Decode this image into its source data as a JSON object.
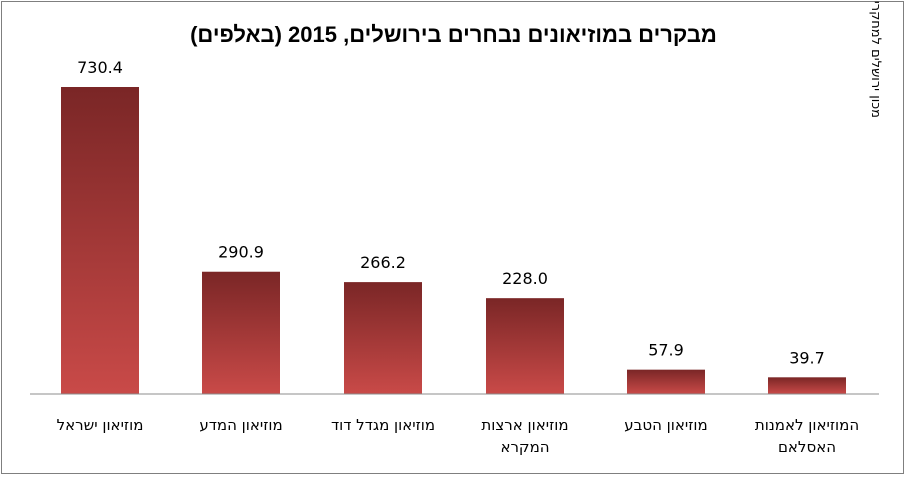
{
  "chart_data": {
    "type": "bar",
    "title": "מבקרים במוזיאונים נבחרים בירושלים, 2015 (באלפים)",
    "source": "מכון ירושלים למחקרי מדיניות",
    "categories": [
      [
        "מוזיאון ישראל"
      ],
      [
        "מוזיאון המדע"
      ],
      [
        "מוזיאון מגדל דוד"
      ],
      [
        "מוזיאון ארצות",
        "המקרא"
      ],
      [
        "מוזיאון הטבע"
      ],
      [
        "המוזיאון לאמנות",
        "האסלאם"
      ]
    ],
    "values": [
      730.4,
      290.9,
      266.2,
      228.0,
      57.9,
      39.7
    ],
    "value_labels": [
      "730.4",
      "290.9",
      "266.2",
      "228.0",
      "57.9",
      "39.7"
    ],
    "ylim": [
      0,
      800
    ],
    "grid": false,
    "colors": {
      "bar_top": "#7a2626",
      "bar_bottom": "#c94a48",
      "axis": "#8c8c8c"
    }
  }
}
